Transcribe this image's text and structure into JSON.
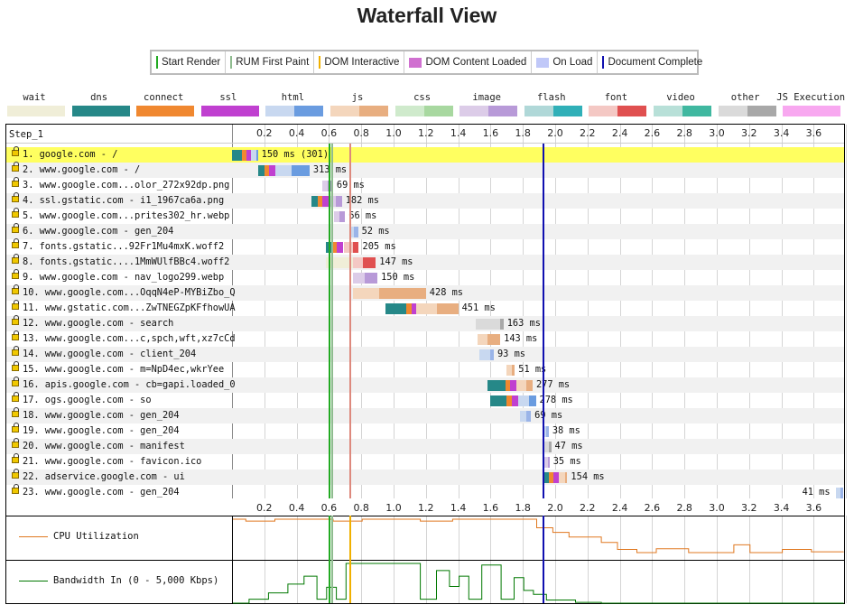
{
  "title": "Waterfall View",
  "legend": [
    {
      "label": "Start Render",
      "color": "#22aa22",
      "kind": "line"
    },
    {
      "label": "RUM First Paint",
      "color": "#8fbc8f",
      "kind": "line"
    },
    {
      "label": "DOM Interactive",
      "color": "#f0b000",
      "kind": "line"
    },
    {
      "label": "DOM Content Loaded",
      "color": "#d070d0",
      "kind": "box"
    },
    {
      "label": "On Load",
      "color": "#c0c8f8",
      "kind": "box"
    },
    {
      "label": "Document Complete",
      "color": "#1010b0",
      "kind": "line"
    }
  ],
  "types": [
    {
      "label": "wait",
      "colors": [
        "#f0eed8"
      ]
    },
    {
      "label": "dns",
      "colors": [
        "#268888"
      ]
    },
    {
      "label": "connect",
      "colors": [
        "#f08830"
      ]
    },
    {
      "label": "ssl",
      "colors": [
        "#c040d0"
      ]
    },
    {
      "label": "html",
      "colors": [
        "#c8d8f0",
        "#6a9ce0"
      ]
    },
    {
      "label": "js",
      "colors": [
        "#f4d6bc",
        "#e8ae80"
      ]
    },
    {
      "label": "css",
      "colors": [
        "#cfeacc",
        "#a8d8a0"
      ]
    },
    {
      "label": "image",
      "colors": [
        "#dccce8",
        "#b89ad8"
      ]
    },
    {
      "label": "flash",
      "colors": [
        "#b0d8d8",
        "#30b0b8"
      ]
    },
    {
      "label": "font",
      "colors": [
        "#f4c8c4",
        "#e05050"
      ]
    },
    {
      "label": "video",
      "colors": [
        "#b8e0d8",
        "#40b8a0"
      ]
    },
    {
      "label": "other",
      "colors": [
        "#dadada",
        "#a8a8a8"
      ]
    },
    {
      "label": "JS Execution",
      "colors": [
        "#f8a8f0"
      ]
    }
  ],
  "step_label": "Step_1",
  "ticks": [
    "0.2",
    "0.4",
    "0.6",
    "0.8",
    "1.0",
    "1.2",
    "1.4",
    "1.6",
    "1.8",
    "2.0",
    "2.2",
    "2.4",
    "2.6",
    "2.8",
    "3.0",
    "3.2",
    "3.4",
    "3.6"
  ],
  "events": {
    "start_render": 0.6,
    "rum_first_paint": 0.615,
    "dom_interactive": 0.725,
    "dom_content_loaded": 0.728,
    "document_complete": 1.92
  },
  "requests": [
    {
      "label": "1. google.com - /",
      "duration": "150 ms (301)",
      "highlight": true,
      "type": "html",
      "segs": [
        {
          "s": 0.0,
          "e": 0.06,
          "c": "#268888"
        },
        {
          "s": 0.06,
          "e": 0.09,
          "c": "#f08830"
        },
        {
          "s": 0.09,
          "e": 0.12,
          "c": "#c040d0"
        },
        {
          "s": 0.12,
          "e": 0.15,
          "c": "#c8d8f0"
        },
        {
          "s": 0.15,
          "e": 0.16,
          "c": "#6a9ce0"
        }
      ]
    },
    {
      "label": "2. www.google.com - /",
      "duration": "313 ms",
      "type": "html",
      "segs": [
        {
          "s": 0.16,
          "e": 0.2,
          "c": "#268888"
        },
        {
          "s": 0.2,
          "e": 0.23,
          "c": "#f08830"
        },
        {
          "s": 0.23,
          "e": 0.27,
          "c": "#c040d0"
        },
        {
          "s": 0.27,
          "e": 0.37,
          "c": "#c8d8f0"
        },
        {
          "s": 0.37,
          "e": 0.48,
          "c": "#6a9ce0"
        }
      ]
    },
    {
      "label": "3. www.google.com...olor_272x92dp.png",
      "duration": "69 ms",
      "type": "image",
      "segs": [
        {
          "s": 0.56,
          "e": 0.59,
          "c": "#dccce8"
        },
        {
          "s": 0.59,
          "e": 0.625,
          "c": "#b89ad8"
        }
      ]
    },
    {
      "label": "4. ssl.gstatic.com - i1_1967ca6a.png",
      "duration": "182 ms",
      "type": "image",
      "segs": [
        {
          "s": 0.49,
          "e": 0.53,
          "c": "#268888"
        },
        {
          "s": 0.53,
          "e": 0.56,
          "c": "#f08830"
        },
        {
          "s": 0.56,
          "e": 0.6,
          "c": "#c040d0"
        },
        {
          "s": 0.6,
          "e": 0.64,
          "c": "#dccce8"
        },
        {
          "s": 0.64,
          "e": 0.68,
          "c": "#b89ad8"
        }
      ]
    },
    {
      "label": "5. www.google.com...prites302_hr.webp",
      "duration": "66 ms",
      "type": "image",
      "segs": [
        {
          "s": 0.63,
          "e": 0.665,
          "c": "#dccce8"
        },
        {
          "s": 0.665,
          "e": 0.7,
          "c": "#b89ad8"
        }
      ]
    },
    {
      "label": "6. www.google.com - gen_204",
      "duration": "52 ms",
      "type": "other",
      "segs": [
        {
          "s": 0.73,
          "e": 0.755,
          "c": "#c8d8f0"
        },
        {
          "s": 0.755,
          "e": 0.78,
          "c": "#9ab4e8"
        }
      ]
    },
    {
      "label": "7. fonts.gstatic...92Fr1Mu4mxK.woff2",
      "duration": "205 ms",
      "type": "font",
      "segs": [
        {
          "s": 0.58,
          "e": 0.62,
          "c": "#268888"
        },
        {
          "s": 0.62,
          "e": 0.65,
          "c": "#f08830"
        },
        {
          "s": 0.65,
          "e": 0.69,
          "c": "#c040d0"
        },
        {
          "s": 0.69,
          "e": 0.75,
          "c": "#f4c8c4"
        },
        {
          "s": 0.75,
          "e": 0.785,
          "c": "#e05050"
        }
      ]
    },
    {
      "label": "8. fonts.gstatic....1MmWUlfBBc4.woff2",
      "duration": "147 ms",
      "type": "font",
      "segs": [
        {
          "s": 0.58,
          "e": 0.75,
          "c": "#f0eed8"
        },
        {
          "s": 0.75,
          "e": 0.81,
          "c": "#f4c8c4"
        },
        {
          "s": 0.81,
          "e": 0.89,
          "c": "#e05050"
        }
      ]
    },
    {
      "label": "9. www.google.com - nav_logo299.webp",
      "duration": "150 ms",
      "type": "image",
      "segs": [
        {
          "s": 0.75,
          "e": 0.82,
          "c": "#dccce8"
        },
        {
          "s": 0.82,
          "e": 0.9,
          "c": "#b89ad8"
        }
      ]
    },
    {
      "label": "10. www.google.com...OqqN4eP-MYBiZbo_Q",
      "duration": "428 ms",
      "type": "js",
      "segs": [
        {
          "s": 0.75,
          "e": 0.91,
          "c": "#f4d6bc"
        },
        {
          "s": 0.91,
          "e": 1.2,
          "c": "#e8ae80"
        }
      ]
    },
    {
      "label": "11. www.gstatic.com...ZwTNEGZpKFfhowUA",
      "duration": "451 ms",
      "type": "js",
      "segs": [
        {
          "s": 0.95,
          "e": 1.08,
          "c": "#268888"
        },
        {
          "s": 1.08,
          "e": 1.11,
          "c": "#f08830"
        },
        {
          "s": 1.11,
          "e": 1.14,
          "c": "#c040d0"
        },
        {
          "s": 1.14,
          "e": 1.27,
          "c": "#f4d6bc"
        },
        {
          "s": 1.27,
          "e": 1.4,
          "c": "#e8ae80"
        }
      ]
    },
    {
      "label": "12. www.google.com - search",
      "duration": "163 ms",
      "type": "other",
      "segs": [
        {
          "s": 1.51,
          "e": 1.66,
          "c": "#dadada"
        },
        {
          "s": 1.66,
          "e": 1.68,
          "c": "#a8a8a8"
        }
      ]
    },
    {
      "label": "13. www.google.com...c,spch,wft,xz7cCd",
      "duration": "143 ms",
      "type": "js",
      "segs": [
        {
          "s": 1.52,
          "e": 1.58,
          "c": "#f4d6bc"
        },
        {
          "s": 1.58,
          "e": 1.66,
          "c": "#e8ae80"
        }
      ]
    },
    {
      "label": "14. www.google.com - client_204",
      "duration": "93 ms",
      "type": "other",
      "segs": [
        {
          "s": 1.53,
          "e": 1.6,
          "c": "#c8d8f0"
        },
        {
          "s": 1.6,
          "e": 1.62,
          "c": "#9ab4e8"
        }
      ]
    },
    {
      "label": "15. www.google.com - m=NpD4ec,wkrYee",
      "duration": "51 ms",
      "type": "js",
      "segs": [
        {
          "s": 1.7,
          "e": 1.73,
          "c": "#f4d6bc"
        },
        {
          "s": 1.73,
          "e": 1.75,
          "c": "#e8ae80"
        }
      ]
    },
    {
      "label": "16. apis.google.com - cb=gapi.loaded_0",
      "duration": "277 ms",
      "type": "js",
      "segs": [
        {
          "s": 1.58,
          "e": 1.69,
          "c": "#268888"
        },
        {
          "s": 1.69,
          "e": 1.72,
          "c": "#f08830"
        },
        {
          "s": 1.72,
          "e": 1.76,
          "c": "#c040d0"
        },
        {
          "s": 1.76,
          "e": 1.82,
          "c": "#f4d6bc"
        },
        {
          "s": 1.82,
          "e": 1.86,
          "c": "#e8ae80"
        }
      ]
    },
    {
      "label": "17. ogs.google.com - so",
      "duration": "278 ms",
      "type": "html",
      "segs": [
        {
          "s": 1.6,
          "e": 1.7,
          "c": "#268888"
        },
        {
          "s": 1.7,
          "e": 1.73,
          "c": "#f08830"
        },
        {
          "s": 1.73,
          "e": 1.77,
          "c": "#c040d0"
        },
        {
          "s": 1.77,
          "e": 1.84,
          "c": "#c8d8f0"
        },
        {
          "s": 1.84,
          "e": 1.88,
          "c": "#6a9ce0"
        }
      ]
    },
    {
      "label": "18. www.google.com - gen_204",
      "duration": "69 ms",
      "type": "other",
      "segs": [
        {
          "s": 1.78,
          "e": 1.82,
          "c": "#c8d8f0"
        },
        {
          "s": 1.82,
          "e": 1.85,
          "c": "#9ab4e8"
        }
      ]
    },
    {
      "label": "19. www.google.com - gen_204",
      "duration": "38 ms",
      "type": "other",
      "segs": [
        {
          "s": 1.92,
          "e": 1.945,
          "c": "#c8d8f0"
        },
        {
          "s": 1.945,
          "e": 1.96,
          "c": "#9ab4e8"
        }
      ]
    },
    {
      "label": "20. www.google.com - manifest",
      "duration": "47 ms",
      "type": "other",
      "segs": [
        {
          "s": 1.93,
          "e": 1.96,
          "c": "#dadada"
        },
        {
          "s": 1.96,
          "e": 1.975,
          "c": "#a8a8a8"
        }
      ]
    },
    {
      "label": "21. www.google.com - favicon.ico",
      "duration": "35 ms",
      "type": "image",
      "segs": [
        {
          "s": 1.93,
          "e": 1.955,
          "c": "#dccce8"
        },
        {
          "s": 1.955,
          "e": 1.965,
          "c": "#b89ad8"
        }
      ]
    },
    {
      "label": "22. adservice.google.com - ui",
      "duration": "154 ms",
      "type": "js",
      "segs": [
        {
          "s": 1.92,
          "e": 1.96,
          "c": "#268888"
        },
        {
          "s": 1.96,
          "e": 1.99,
          "c": "#f08830"
        },
        {
          "s": 1.99,
          "e": 2.02,
          "c": "#c040d0"
        },
        {
          "s": 2.02,
          "e": 2.06,
          "c": "#f4d6bc"
        },
        {
          "s": 2.06,
          "e": 2.075,
          "c": "#e8ae80"
        }
      ]
    },
    {
      "label": "23. www.google.com - gen_204",
      "duration": "41 ms",
      "type": "other",
      "dur_left": true,
      "segs": [
        {
          "s": 3.735,
          "e": 3.765,
          "c": "#c8d8f0"
        },
        {
          "s": 3.765,
          "e": 3.78,
          "c": "#9ab4e8"
        }
      ]
    }
  ],
  "cpu": {
    "label": "CPU Utilization",
    "color": "#e07820",
    "points": [
      [
        0,
        100
      ],
      [
        0.08,
        100
      ],
      [
        0.08,
        95
      ],
      [
        0.26,
        95
      ],
      [
        0.26,
        100
      ],
      [
        0.62,
        100
      ],
      [
        0.62,
        95
      ],
      [
        0.8,
        95
      ],
      [
        0.8,
        100
      ],
      [
        1.16,
        100
      ],
      [
        1.16,
        95
      ],
      [
        1.36,
        95
      ],
      [
        1.36,
        100
      ],
      [
        1.88,
        100
      ],
      [
        1.88,
        78
      ],
      [
        1.98,
        78
      ],
      [
        1.98,
        66
      ],
      [
        2.08,
        66
      ],
      [
        2.08,
        54
      ],
      [
        2.28,
        54
      ],
      [
        2.28,
        40
      ],
      [
        2.38,
        40
      ],
      [
        2.38,
        22
      ],
      [
        2.5,
        22
      ],
      [
        2.5,
        14
      ],
      [
        2.62,
        14
      ],
      [
        2.62,
        24
      ],
      [
        2.82,
        24
      ],
      [
        2.82,
        14
      ],
      [
        3.1,
        14
      ],
      [
        3.1,
        34
      ],
      [
        3.2,
        34
      ],
      [
        3.2,
        14
      ],
      [
        3.4,
        14
      ],
      [
        3.4,
        22
      ],
      [
        3.58,
        22
      ],
      [
        3.58,
        16
      ],
      [
        3.78,
        16
      ]
    ]
  },
  "bandwidth": {
    "label": "Bandwidth In (0 - 5,000 Kbps)",
    "color": "#007800",
    "points": [
      [
        0,
        0
      ],
      [
        0.1,
        0
      ],
      [
        0.1,
        10
      ],
      [
        0.22,
        10
      ],
      [
        0.22,
        26
      ],
      [
        0.34,
        26
      ],
      [
        0.34,
        48
      ],
      [
        0.44,
        48
      ],
      [
        0.44,
        68
      ],
      [
        0.52,
        68
      ],
      [
        0.52,
        10
      ],
      [
        0.58,
        10
      ],
      [
        0.58,
        40
      ],
      [
        0.64,
        40
      ],
      [
        0.64,
        10
      ],
      [
        0.7,
        10
      ],
      [
        0.7,
        100
      ],
      [
        1.16,
        100
      ],
      [
        1.16,
        10
      ],
      [
        1.26,
        10
      ],
      [
        1.26,
        82
      ],
      [
        1.34,
        82
      ],
      [
        1.34,
        42
      ],
      [
        1.4,
        42
      ],
      [
        1.4,
        68
      ],
      [
        1.46,
        68
      ],
      [
        1.46,
        10
      ],
      [
        1.54,
        10
      ],
      [
        1.54,
        96
      ],
      [
        1.66,
        96
      ],
      [
        1.66,
        10
      ],
      [
        1.74,
        10
      ],
      [
        1.74,
        64
      ],
      [
        1.8,
        64
      ],
      [
        1.8,
        32
      ],
      [
        1.86,
        32
      ],
      [
        1.86,
        22
      ],
      [
        1.94,
        22
      ],
      [
        1.94,
        8
      ],
      [
        2.12,
        8
      ],
      [
        2.12,
        2
      ],
      [
        2.28,
        2
      ],
      [
        2.28,
        0
      ],
      [
        3.78,
        0
      ]
    ]
  }
}
